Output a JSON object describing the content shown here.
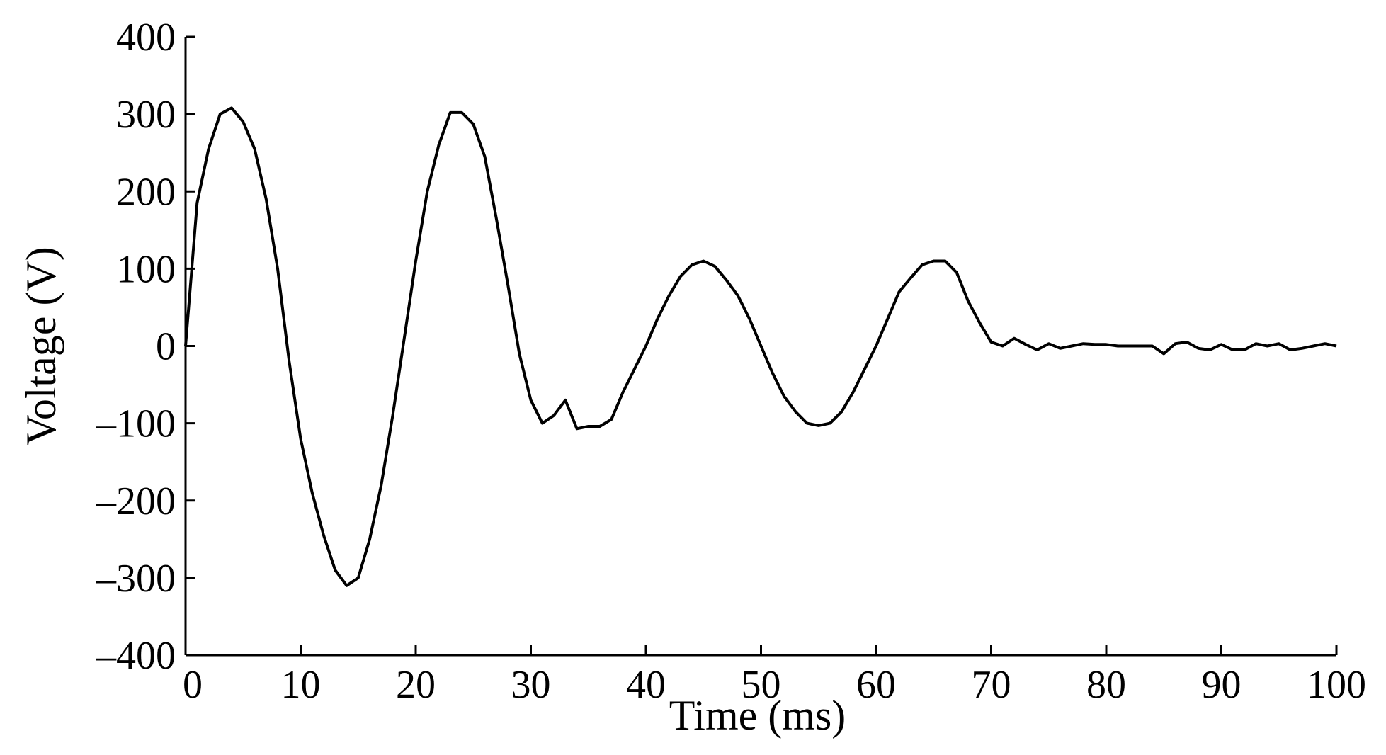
{
  "chart_data": {
    "type": "line",
    "title": "",
    "xlabel": "Time (ms)",
    "ylabel": "Voltage (V)",
    "xlim": [
      0,
      100
    ],
    "ylim": [
      -400,
      400
    ],
    "x_ticks": [
      0,
      10,
      20,
      30,
      40,
      50,
      60,
      70,
      80,
      90,
      100
    ],
    "y_ticks": [
      400,
      300,
      200,
      100,
      0,
      -100,
      -200,
      -300,
      -400
    ],
    "x_tick_labels": [
      "0",
      "10",
      "20",
      "30",
      "40",
      "50",
      "60",
      "70",
      "80",
      "90",
      "100"
    ],
    "y_tick_labels": [
      "400",
      "300",
      "200",
      "100",
      "0",
      "–100",
      "–200",
      "–300",
      "–400"
    ],
    "grid": false,
    "legend": "none",
    "line_color": "#000000",
    "series": [
      {
        "x": [
          0,
          1,
          2,
          3,
          4,
          5,
          6,
          7,
          8,
          9,
          10,
          11,
          12,
          13,
          14,
          15,
          16,
          17,
          18,
          19,
          20,
          21,
          22,
          23,
          24,
          25,
          26,
          27,
          28,
          29,
          30,
          31,
          32,
          33,
          34,
          35,
          36,
          37,
          38,
          39,
          40,
          41,
          42,
          43,
          44,
          45,
          46,
          47,
          48,
          49,
          50,
          51,
          52,
          53,
          54,
          55,
          56,
          57,
          58,
          59,
          60,
          61,
          62,
          63,
          64,
          65,
          66,
          67,
          68,
          69,
          70,
          71,
          72,
          73,
          74,
          75,
          76,
          77,
          78,
          79,
          80,
          81,
          82,
          83,
          84,
          85,
          86,
          87,
          88,
          89,
          90,
          91,
          92,
          93,
          94,
          95,
          96,
          97,
          98,
          99,
          100
        ],
        "y": [
          0,
          185,
          255,
          300,
          308,
          290,
          255,
          190,
          100,
          -20,
          -120,
          -190,
          -245,
          -290,
          -310,
          -300,
          -250,
          -180,
          -90,
          10,
          110,
          200,
          260,
          302,
          302,
          287,
          245,
          165,
          80,
          -10,
          -70,
          -100,
          -90,
          -70,
          -107,
          -104,
          -104,
          -95,
          -60,
          -30,
          0,
          35,
          65,
          90,
          105,
          110,
          103,
          85,
          65,
          35,
          0,
          -35,
          -65,
          -85,
          -100,
          -103,
          -100,
          -85,
          -60,
          -30,
          0,
          35,
          70,
          88,
          105,
          110,
          110,
          95,
          58,
          30,
          5,
          0,
          10,
          2,
          -5,
          3,
          -3,
          0,
          3,
          2,
          2,
          0,
          0,
          0,
          0,
          -10,
          3,
          5,
          -3,
          -5,
          2,
          -5,
          -5,
          3,
          0,
          3,
          -5,
          -3,
          0,
          3,
          0
        ]
      }
    ]
  }
}
